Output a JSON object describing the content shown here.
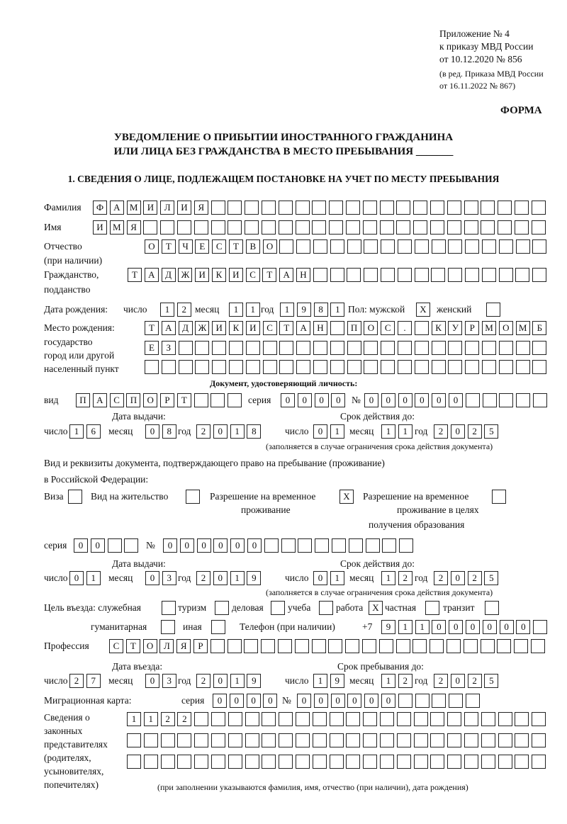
{
  "header": {
    "line1": "Приложение № 4",
    "line2": "к приказу МВД России",
    "line3": "от 10.12.2020 № 856",
    "line4": "(в ред. Приказа МВД России",
    "line5": "от 16.11.2022 № 867)",
    "form": "ФОРМА"
  },
  "title": {
    "line1": "УВЕДОМЛЕНИЕ О ПРИБЫТИИ ИНОСТРАННОГО ГРАЖДАНИНА",
    "line2": "ИЛИ ЛИЦА БЕЗ ГРАЖДАНСТВА В МЕСТО ПРЕБЫВАНИЯ _______"
  },
  "section1": "1. СВЕДЕНИЯ О ЛИЦЕ, ПОДЛЕЖАЩЕМ ПОСТАНОВКЕ НА УЧЕТ ПО МЕСТУ ПРЕБЫВАНИЯ",
  "labels": {
    "surname": "Фамилия",
    "name": "Имя",
    "patronymic1": "Отчество",
    "patronymic2": "(при наличии)",
    "citizenship1": "Гражданство,",
    "citizenship2": "подданство",
    "birthdate": "Дата рождения:",
    "day": "число",
    "month": "месяц",
    "year": "год",
    "sex": "Пол: мужской",
    "female": "женский",
    "birthplace1": "Место рождения:",
    "birthplace2": "государство",
    "birthplace3": "город или другой",
    "birthplace4": "населенный пункт",
    "iddoc": "Документ, удостоверяющий личность:",
    "kind": "вид",
    "series": "серия",
    "number": "№",
    "issue_date": "Дата выдачи:",
    "valid_until": "Срок действия до:",
    "valid_note": "(заполняется в случае ограничения срока действия документа)",
    "right_doc1": "Вид и реквизиты документа, подтверждающего право на пребывание (проживание)",
    "right_doc2": "в Российской Федерации:",
    "visa": "Виза",
    "residence": "Вид на жительство",
    "temp1": "Разрешение на временное",
    "temp2": "проживание",
    "edu1": "Разрешение на временное",
    "edu2": "проживание в целях",
    "edu3": "получения образования",
    "purpose": "Цель въезда: служебная",
    "tourism": "туризм",
    "business": "деловая",
    "study": "учеба",
    "work": "работа",
    "private": "частная",
    "transit": "транзит",
    "humanitarian": "гуманитарная",
    "other": "иная",
    "phone": "Телефон (при наличии)",
    "phone_prefix": "+7",
    "profession": "Профессия",
    "entry_date": "Дата въезда:",
    "stay_until": "Срок пребывания до:",
    "migration_card": "Миграционная карта:",
    "reps1": "Сведения о",
    "reps2": "законных",
    "reps3": "представителях",
    "reps4": "(родителях,",
    "reps5": "усыновителях,",
    "reps6": "попечителях)",
    "reps_note": "(при заполнении указываются фамилия, имя, отчество (при наличии), дата рождения)"
  },
  "fields": {
    "surname": "ФАМИЛИЯ",
    "name": "ИМЯ",
    "patronymic": "ОТЧЕСТВО",
    "citizenship": "ТАДЖИКИСТАН",
    "birth_day": "12",
    "birth_month": "11",
    "birth_year": "1981",
    "sex_male": "X",
    "sex_female": "",
    "birthplace1": "ТАДЖИКИСТАН ПОС. КУРМОМБ",
    "birthplace2": "ЕЗ",
    "birthplace3": "",
    "doc_kind": "ПАСПОРТ",
    "doc_series": "0000",
    "doc_number": "000000",
    "doc_issue_day": "16",
    "doc_issue_month": "08",
    "doc_issue_year": "2018",
    "doc_valid_day": "01",
    "doc_valid_month": "11",
    "doc_valid_year": "2025",
    "visa": "",
    "residence": "",
    "temp_residence": "X",
    "temp_edu": "",
    "right_series": "00",
    "right_number": "000000",
    "right_issue_day": "01",
    "right_issue_month": "03",
    "right_issue_year": "2019",
    "right_valid_day": "01",
    "right_valid_month": "12",
    "right_valid_year": "2025",
    "p_service": "",
    "p_tourism": "",
    "p_business": "",
    "p_study": "",
    "p_work": "X",
    "p_private": "",
    "p_transit": "",
    "p_humanitarian": "",
    "p_other": "",
    "phone": "911000000",
    "profession": "СТОЛЯР",
    "entry_day": "27",
    "entry_month": "03",
    "entry_year": "2019",
    "stay_day": "19",
    "stay_month": "12",
    "stay_year": "2025",
    "mc_series": "0000",
    "mc_number": "000000",
    "reps1": "1122",
    "reps2": "",
    "reps3": ""
  }
}
